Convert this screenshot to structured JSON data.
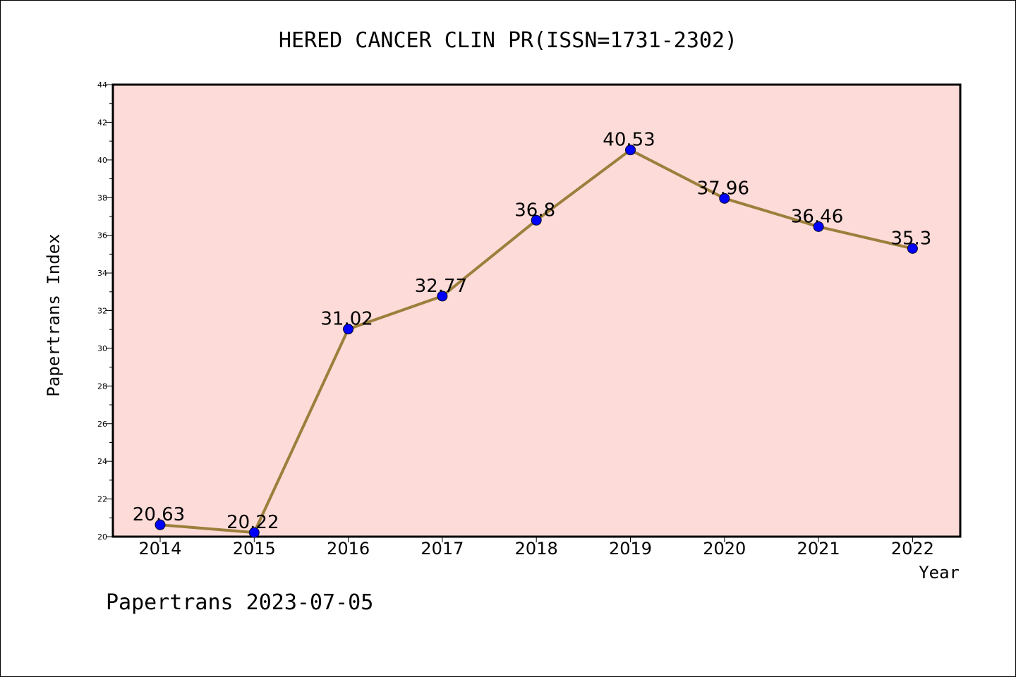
{
  "chart_data": {
    "type": "line",
    "title": "HERED CANCER CLIN PR(ISSN=1731-2302)",
    "xlabel": "Year",
    "ylabel": "Papertrans Index",
    "categories": [
      "2014",
      "2015",
      "2016",
      "2017",
      "2018",
      "2019",
      "2020",
      "2021",
      "2022"
    ],
    "series": [
      {
        "values": [
          20.63,
          20.22,
          31.02,
          32.77,
          36.8,
          40.53,
          37.96,
          36.46,
          35.3
        ],
        "labels": [
          "20.63",
          "20.22",
          "31.02",
          "32.77",
          "36.8",
          "40.53",
          "37.96",
          "36.46",
          "35.3"
        ]
      }
    ],
    "ylim": [
      20,
      44
    ],
    "yticks": [
      "20",
      "22",
      "24",
      "26",
      "28",
      "30",
      "32",
      "34",
      "36",
      "38",
      "40",
      "42",
      "44"
    ],
    "grid": false,
    "colors": {
      "plot_background": "#fddbd8",
      "line": "#9c7f3c",
      "marker": "#0000ff"
    }
  },
  "footer": "Papertrans 2023-07-05"
}
